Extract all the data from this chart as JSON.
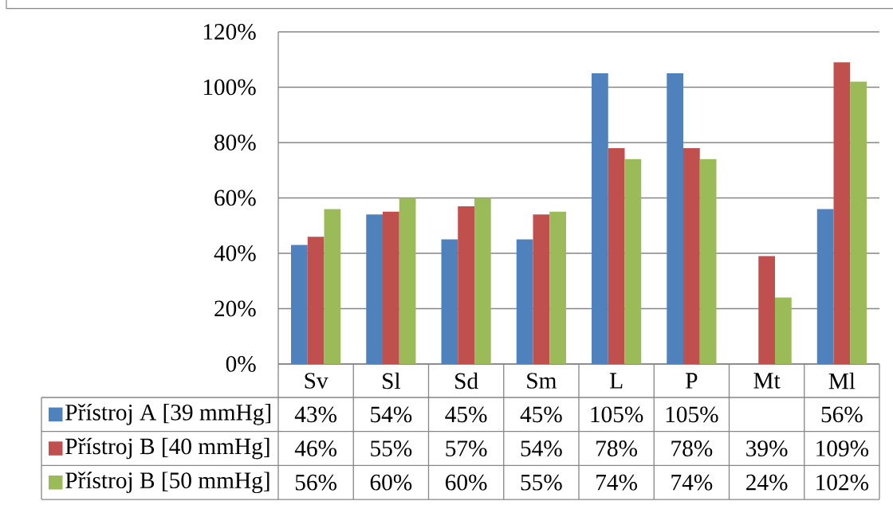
{
  "chart_data": {
    "type": "bar",
    "categories": [
      "Sv",
      "Sl",
      "Sd",
      "Sm",
      "L",
      "P",
      "Mt",
      "Ml"
    ],
    "series": [
      {
        "name": "Přístroj A [39 mmHg]",
        "color": "#4f81bd",
        "values": [
          43,
          54,
          45,
          45,
          105,
          105,
          null,
          56
        ],
        "value_labels": [
          "43%",
          "54%",
          "45%",
          "45%",
          "105%",
          "105%",
          null,
          "56%"
        ]
      },
      {
        "name": "Přístroj B [40 mmHg]",
        "color": "#c0504d",
        "values": [
          46,
          55,
          57,
          54,
          78,
          78,
          39,
          109
        ],
        "value_labels": [
          "46%",
          "55%",
          "57%",
          "54%",
          "78%",
          "78%",
          "39%",
          "109%"
        ]
      },
      {
        "name": "Přístroj B [50 mmHg]",
        "color": "#9bbb59",
        "values": [
          56,
          60,
          60,
          55,
          74,
          74,
          24,
          102
        ],
        "value_labels": [
          "56%",
          "60%",
          "60%",
          "55%",
          "74%",
          "74%",
          "24%",
          "102%"
        ]
      }
    ],
    "ylim": [
      0,
      120
    ],
    "yticks": [
      {
        "value": 0,
        "label": "0%"
      },
      {
        "value": 20,
        "label": "20%"
      },
      {
        "value": 40,
        "label": "40%"
      },
      {
        "value": 60,
        "label": "60%"
      },
      {
        "value": 80,
        "label": "80%"
      },
      {
        "value": 100,
        "label": "100%"
      },
      {
        "value": 120,
        "label": "120%"
      }
    ],
    "grid": "y",
    "legend": "bottom"
  }
}
